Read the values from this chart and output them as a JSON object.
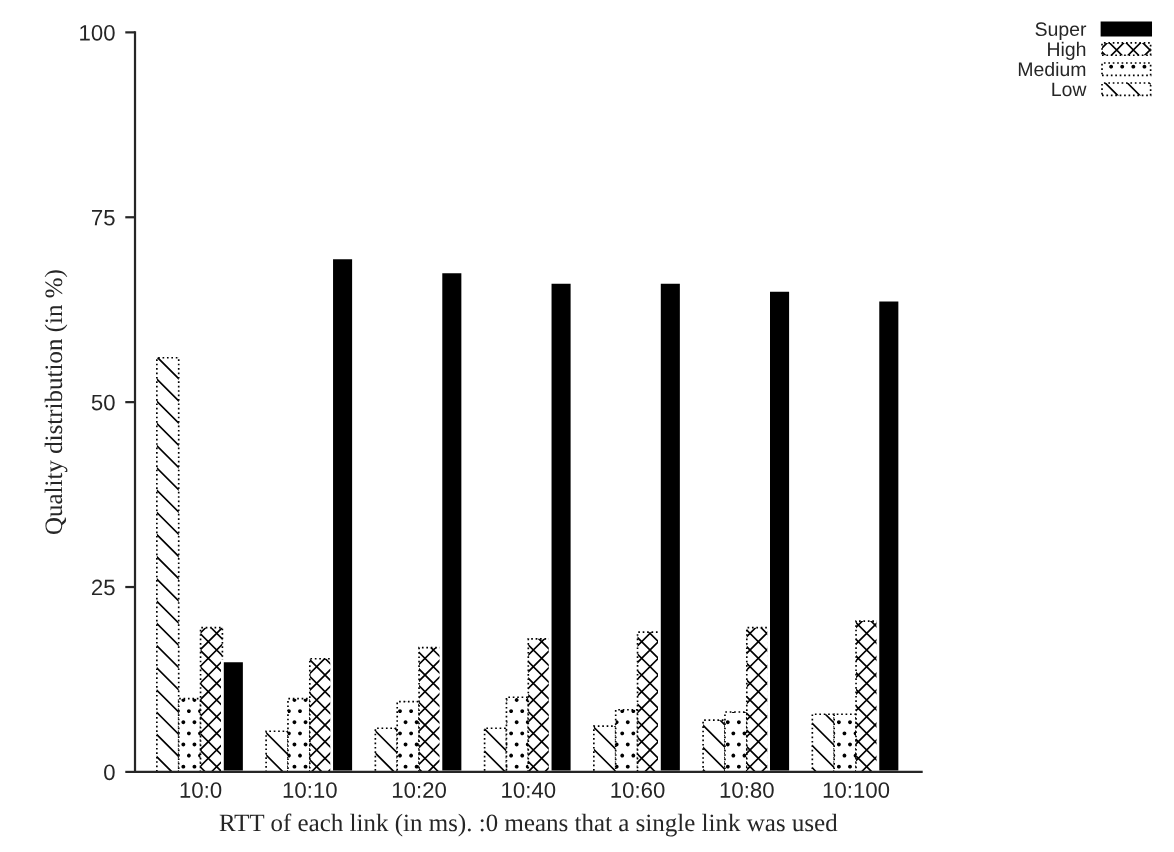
{
  "chart_data": {
    "type": "bar",
    "xlabel": "RTT of each link (in ms). :0 means that a single link was used",
    "ylabel": "Quality distribution (in %)",
    "categories": [
      "10:0",
      "10:10",
      "10:20",
      "10:40",
      "10:60",
      "10:80",
      "10:100"
    ],
    "series": [
      {
        "name": "Low",
        "color": "#000000",
        "values": [
          56,
          5.5,
          5.9,
          5.9,
          6.2,
          7.0,
          7.8
        ]
      },
      {
        "name": "Medium",
        "color": "#000000",
        "values": [
          9.9,
          9.9,
          9.5,
          10.1,
          8.4,
          8.1,
          7.8
        ]
      },
      {
        "name": "High",
        "color": "#000000",
        "values": [
          19.5,
          15.3,
          16.8,
          18.0,
          18.9,
          19.5,
          20.4
        ]
      },
      {
        "name": "Super",
        "color": "#000000",
        "values": [
          15.0,
          69.5,
          67.6,
          66.2,
          66.2,
          65.1,
          63.8
        ]
      }
    ],
    "ylim": [
      0,
      100
    ],
    "yticks": [
      0,
      25,
      50,
      75,
      100
    ],
    "grid": false,
    "legend": "top right"
  }
}
